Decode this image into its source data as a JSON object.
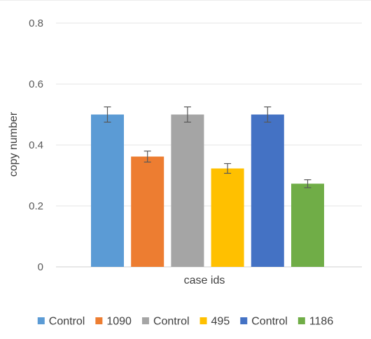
{
  "chart_data": {
    "type": "bar",
    "title": "",
    "xlabel": "case ids",
    "ylabel": "copy number",
    "ylim": [
      0,
      0.8
    ],
    "yticks": [
      "0",
      "0.2",
      "0.4",
      "0.6",
      "0.8"
    ],
    "ytick_values": [
      0,
      0.2,
      0.4,
      0.6,
      0.8
    ],
    "grid": true,
    "legend_position": "bottom",
    "series": [
      {
        "name": "Control",
        "value": 0.5,
        "error": 0.025,
        "color": "#5B9BD5"
      },
      {
        "name": "1090",
        "value": 0.362,
        "error": 0.018,
        "color": "#ED7D31"
      },
      {
        "name": "Control",
        "value": 0.5,
        "error": 0.025,
        "color": "#A5A5A5"
      },
      {
        "name": "495",
        "value": 0.323,
        "error": 0.016,
        "color": "#FFC000"
      },
      {
        "name": "Control",
        "value": 0.5,
        "error": 0.025,
        "color": "#4472C4"
      },
      {
        "name": "1186",
        "value": 0.273,
        "error": 0.013,
        "color": "#70AD47"
      }
    ]
  }
}
